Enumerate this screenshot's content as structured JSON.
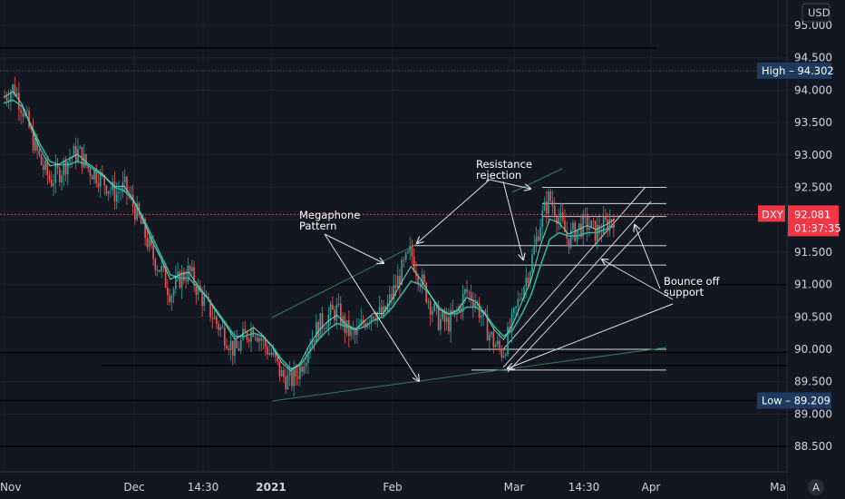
{
  "chart_data": {
    "type": "candlestick",
    "symbol": "DXY",
    "currency": "USD",
    "last_price": "92.081",
    "countdown": "01:37:35",
    "high_label": "High",
    "high_value": "94.302",
    "low_label": "Low",
    "low_value": "89.209",
    "ylim": [
      88.25,
      95.3
    ],
    "y_ticks": [
      "95.000",
      "94.500",
      "94.000",
      "93.500",
      "93.000",
      "92.500",
      "92.000",
      "91.500",
      "91.000",
      "90.500",
      "90.000",
      "89.500",
      "89.000",
      "88.500"
    ],
    "x_ticks": [
      "Nov",
      "Dec",
      "14:30",
      "2021",
      "Feb",
      "Mar",
      "14:30",
      "Apr",
      "Ma"
    ],
    "x_ticks_bold": [
      false,
      false,
      false,
      true,
      false,
      false,
      false,
      false,
      false
    ],
    "close_series": [
      93.9,
      94.05,
      93.7,
      93.25,
      92.85,
      92.6,
      92.75,
      92.95,
      93.05,
      92.8,
      92.7,
      92.55,
      92.4,
      92.5,
      92.2,
      91.85,
      91.45,
      91.2,
      90.85,
      91.1,
      91.2,
      90.9,
      90.65,
      90.4,
      90.2,
      89.95,
      90.2,
      90.35,
      90.1,
      89.9,
      89.6,
      89.5,
      89.7,
      90.1,
      90.35,
      90.5,
      90.6,
      90.3,
      90.2,
      90.45,
      90.6,
      90.5,
      90.85,
      91.2,
      91.5,
      91.1,
      90.75,
      90.45,
      90.4,
      90.55,
      90.9,
      90.75,
      90.4,
      90.1,
      89.95,
      90.4,
      90.9,
      91.3,
      91.95,
      92.35,
      92.05,
      91.7,
      91.85,
      91.95,
      91.8,
      91.9,
      92.05
    ],
    "ema_series": [
      93.8,
      93.85,
      93.75,
      93.45,
      93.15,
      92.9,
      92.85,
      92.85,
      92.9,
      92.85,
      92.75,
      92.65,
      92.5,
      92.45,
      92.3,
      92.05,
      91.75,
      91.45,
      91.15,
      91.1,
      91.1,
      90.95,
      90.8,
      90.6,
      90.4,
      90.2,
      90.2,
      90.25,
      90.2,
      90.05,
      89.85,
      89.7,
      89.75,
      89.95,
      90.15,
      90.3,
      90.4,
      90.35,
      90.3,
      90.35,
      90.45,
      90.5,
      90.65,
      90.85,
      91.05,
      91.0,
      90.85,
      90.65,
      90.55,
      90.55,
      90.65,
      90.65,
      90.55,
      90.35,
      90.2,
      90.3,
      90.55,
      90.85,
      91.3,
      91.7,
      91.8,
      91.75,
      91.75,
      91.8,
      91.8,
      91.85,
      91.9
    ],
    "horizontal_levels": [
      94.65,
      94.3,
      91.6,
      91.3,
      90.0,
      89.75,
      89.2,
      89.95,
      88.5
    ],
    "annotations": {
      "megaphone": [
        "Megaphone",
        "Pattern"
      ],
      "resistance": [
        "Resistance",
        "rejection"
      ],
      "bounce": [
        "Bounce off",
        "support"
      ]
    },
    "colors": {
      "background": "#131722",
      "up": "#26a69a",
      "down": "#ef5350",
      "ema": "#2fb39a",
      "grid": "#1e222d",
      "high_low_label": "#1e3a5f",
      "price_label": "#f23645"
    },
    "grid": true
  }
}
